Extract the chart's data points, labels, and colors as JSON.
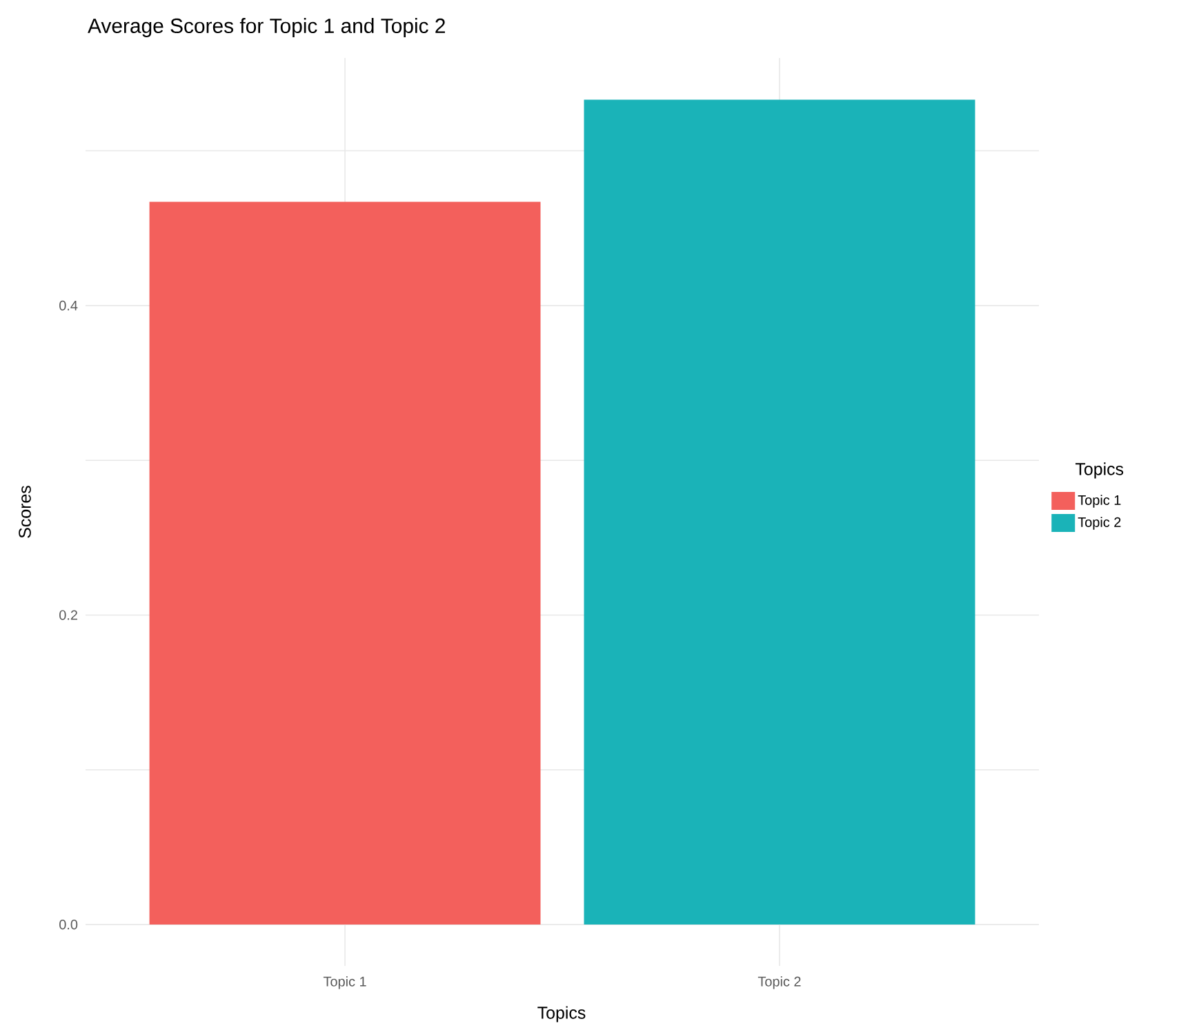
{
  "chart_data": {
    "type": "bar",
    "title": "Average Scores for Topic 1 and Topic 2",
    "xlabel": "Topics",
    "ylabel": "Scores",
    "legend_title": "Topics",
    "categories": [
      "Topic 1",
      "Topic 2"
    ],
    "series": [
      {
        "name": "Topic 1",
        "color": "#f3605c",
        "values": [
          0.467,
          null
        ]
      },
      {
        "name": "Topic 2",
        "color": "#1ab3b8",
        "values": [
          null,
          0.533
        ]
      }
    ],
    "ylim": [
      -0.0267,
      0.56
    ],
    "yticks": [
      {
        "value": 0,
        "label": "0.0"
      },
      {
        "value": 0.1,
        "label": null
      },
      {
        "value": 0.2,
        "label": "0.2"
      },
      {
        "value": 0.3,
        "label": null
      },
      {
        "value": 0.4,
        "label": "0.4"
      },
      {
        "value": 0.5,
        "label": null
      }
    ],
    "grid": true,
    "legend": "right"
  }
}
